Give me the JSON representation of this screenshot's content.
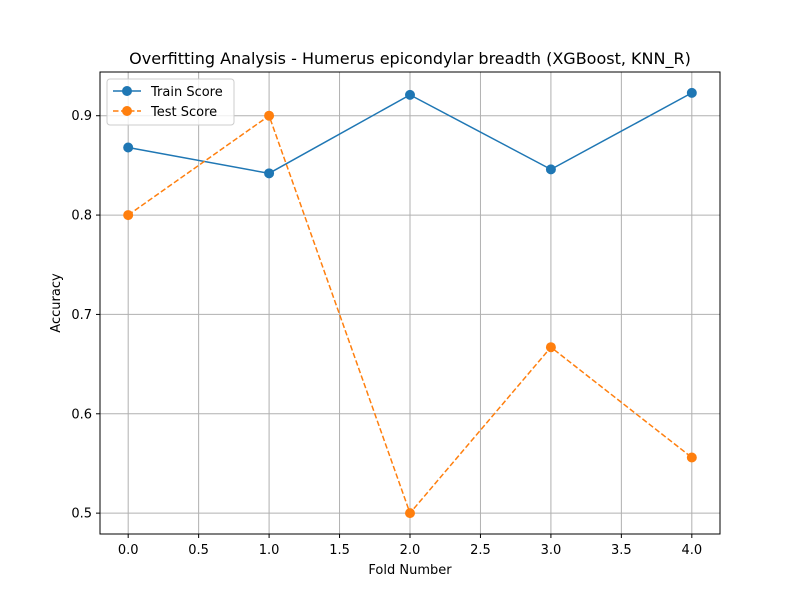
{
  "chart_data": {
    "type": "line",
    "title": "Overfitting Analysis - Humerus epicondylar breadth (XGBoost, KNN_R)",
    "xlabel": "Fold Number",
    "ylabel": "Accuracy",
    "x": [
      0,
      1,
      2,
      3,
      4
    ],
    "xlim": [
      -0.2,
      4.2
    ],
    "ylim": [
      0.479,
      0.944
    ],
    "xticks": [
      0.0,
      0.5,
      1.0,
      1.5,
      2.0,
      2.5,
      3.0,
      3.5,
      4.0
    ],
    "xtick_labels": [
      "0.0",
      "0.5",
      "1.0",
      "1.5",
      "2.0",
      "2.5",
      "3.0",
      "3.5",
      "4.0"
    ],
    "yticks": [
      0.5,
      0.6,
      0.7,
      0.8,
      0.9
    ],
    "ytick_labels": [
      "0.5",
      "0.6",
      "0.7",
      "0.8",
      "0.9"
    ],
    "grid": true,
    "legend_position": "top-left",
    "series": [
      {
        "name": "Train Score",
        "color": "#1f77b4",
        "dash": "solid",
        "marker": "circle",
        "values": [
          0.868,
          0.842,
          0.921,
          0.846,
          0.923
        ]
      },
      {
        "name": "Test Score",
        "color": "#ff7f0e",
        "dash": "dashed",
        "marker": "circle",
        "values": [
          0.8,
          0.9,
          0.5,
          0.667,
          0.556
        ]
      }
    ]
  }
}
